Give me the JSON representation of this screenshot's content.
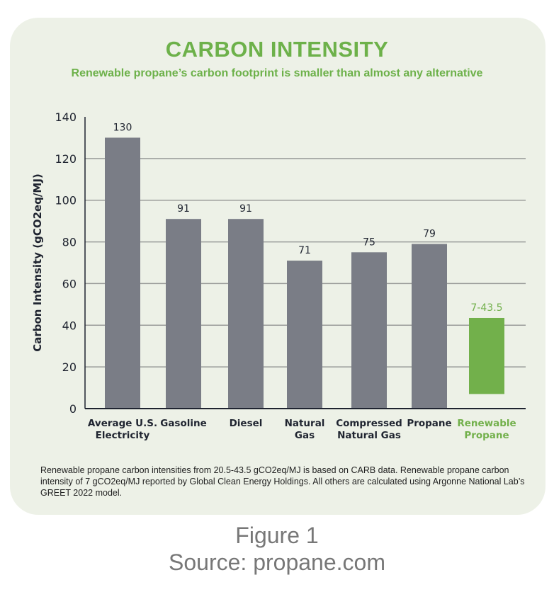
{
  "chart_data": {
    "type": "bar",
    "title": "CARBON INTENSITY",
    "subtitle": "Renewable propane’s carbon footprint is smaller than almost any alternative",
    "ylabel": "Carbon Intensity (gCO2eq/MJ)",
    "xlabel": "",
    "ylim": [
      0,
      140
    ],
    "yticks": [
      0,
      20,
      40,
      60,
      80,
      100,
      120,
      140
    ],
    "grid": true,
    "categories": [
      [
        "Average U.S.",
        "Electricity"
      ],
      [
        "Gasoline"
      ],
      [
        "Diesel"
      ],
      [
        "Natural",
        "Gas"
      ],
      [
        "Compressed",
        "Natural Gas"
      ],
      [
        "Propane"
      ],
      [
        "Renewable",
        "Propane"
      ]
    ],
    "values": [
      130,
      91,
      91,
      71,
      75,
      79,
      [
        7,
        43.5
      ]
    ],
    "data_labels": [
      "130",
      "91",
      "91",
      "71",
      "75",
      "79",
      "7-43.5"
    ],
    "colors": {
      "default": "#7a7d86",
      "highlight": "#72b04b",
      "axis_text": "#1f2430"
    },
    "highlight_index": 6
  },
  "footnote": "Renewable propane carbon intensities from 20.5-43.5 gCO2eq/MJ is based on CARB data. Renewable propane carbon intensity of 7 gCO2eq/MJ reported by Global Clean Energy Holdings. All others are calculated using Argonne National Lab’s GREET 2022 model.",
  "caption": {
    "figure": "Figure 1",
    "source": "Source: propane.com"
  }
}
